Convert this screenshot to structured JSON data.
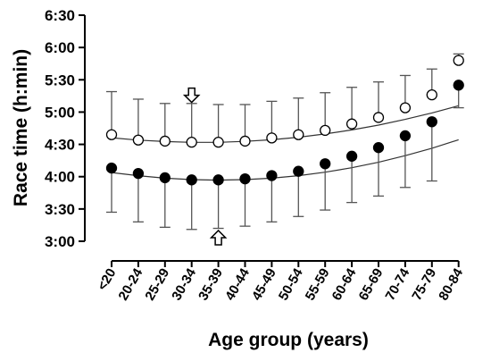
{
  "chart_data": {
    "type": "scatter",
    "xlabel": "Age group (years)",
    "ylabel": "Race time (h:min)",
    "categories": [
      "<20",
      "20-24",
      "25-29",
      "30-34",
      "35-39",
      "40-44",
      "45-49",
      "50-54",
      "55-59",
      "60-64",
      "65-69",
      "70-74",
      "75-79",
      "80-84"
    ],
    "y_unit": "minutes",
    "yticks": [
      {
        "value": 180,
        "label": "3:00"
      },
      {
        "value": 210,
        "label": "3:30"
      },
      {
        "value": 240,
        "label": "4:00"
      },
      {
        "value": 270,
        "label": "4:30"
      },
      {
        "value": 300,
        "label": "5:00"
      },
      {
        "value": 330,
        "label": "5:30"
      },
      {
        "value": 360,
        "label": "6:00"
      },
      {
        "value": 390,
        "label": "6:30"
      }
    ],
    "ylim": [
      180,
      390
    ],
    "grid": false,
    "series": [
      {
        "marker": "open-circle",
        "values": [
          279,
          274,
          273,
          272,
          272,
          273,
          276,
          279,
          283,
          289,
          295,
          304,
          316,
          348
        ],
        "error_upper": [
          319,
          312,
          308,
          308,
          307,
          307,
          310,
          313,
          318,
          323,
          328,
          334,
          340,
          354
        ],
        "error_lower": null,
        "fit": [
          276.1,
          274.0,
          272.6,
          271.9,
          271.9,
          272.8,
          274.3,
          276.6,
          279.7,
          283.4,
          287.9,
          293.2,
          299.2,
          305.9
        ]
      },
      {
        "marker": "filled-circle",
        "values": [
          248,
          243,
          239,
          237,
          237,
          238,
          241,
          245,
          252,
          259,
          267,
          278,
          291,
          325
        ],
        "error_upper": null,
        "error_lower": [
          207,
          198,
          193,
          191,
          192,
          194,
          198,
          203,
          209,
          216,
          222,
          230,
          236,
          304
        ],
        "fit": [
          243.8,
          240.9,
          238.6,
          237.3,
          236.8,
          237.3,
          238.6,
          240.9,
          244.2,
          248.3,
          253.4,
          259.5,
          266.4,
          274.3
        ]
      }
    ],
    "annotations": [
      {
        "type": "arrow",
        "direction": "down",
        "category": "30-34",
        "anchor_value": 309
      },
      {
        "type": "arrow",
        "direction": "up",
        "category": "35-39",
        "anchor_value": 190
      }
    ],
    "fit_curve": "quadratic"
  }
}
